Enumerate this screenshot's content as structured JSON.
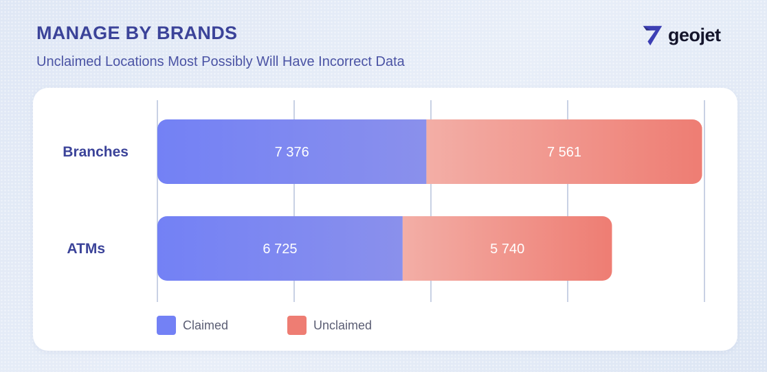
{
  "header": {
    "title": "MANAGE BY BRANDS",
    "subtitle": "Unclaimed Locations Most Possibly Will Have Incorrect Data"
  },
  "logo": {
    "text": "geojet",
    "icon": "seven-shaped-logo-mark",
    "color": "#3c3fb4"
  },
  "colors": {
    "claimed_start": "#7381f5",
    "claimed_end": "#8a90ec",
    "unclaimed_start": "#f3aea6",
    "unclaimed_end": "#ee7d73",
    "gridline": "#c8d1e4",
    "category_label": "#3b4399"
  },
  "chart_data": {
    "type": "bar",
    "orientation": "horizontal",
    "stacked": true,
    "title": "",
    "xlabel": "",
    "ylabel": "",
    "categories": [
      "Branches",
      "ATMs"
    ],
    "series": [
      {
        "name": "Claimed",
        "values": [
          7376,
          6725
        ],
        "labels": [
          "7 376",
          "6 725"
        ]
      },
      {
        "name": "Unclaimed",
        "values": [
          7561,
          5740
        ],
        "labels": [
          "7 561",
          "5 740"
        ]
      }
    ],
    "xlim": [
      0,
      15000
    ],
    "grid": true,
    "tick_labels_visible": false,
    "legend": "bottom-left"
  }
}
